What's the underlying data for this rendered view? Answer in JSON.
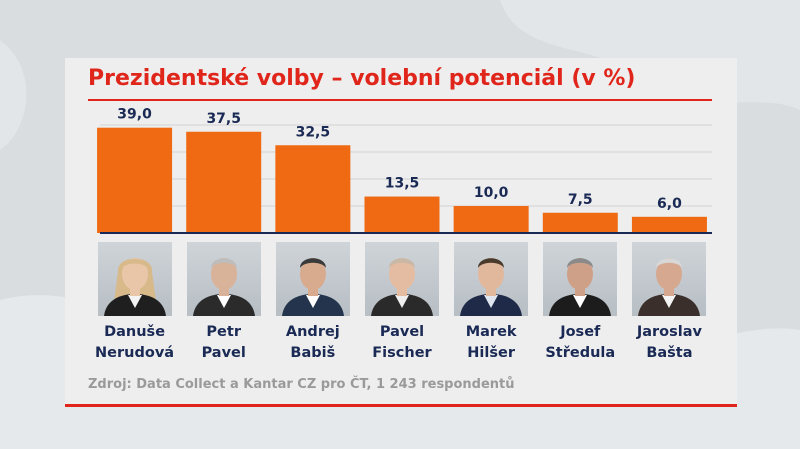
{
  "title": "Prezidentské volby – volební potenciál (v %)",
  "source": "Zdroj: Data Collect a Kantar CZ pro ČT, 1 243 respondentů",
  "colors": {
    "accent": "#e0261b",
    "bar": "#ef6a12",
    "text_dark": "#1a2a55",
    "source_text": "#9a9a9a",
    "panel": "#eeeeee"
  },
  "chart_data": {
    "type": "bar",
    "title": "Prezidentské volby – volební potenciál (v %)",
    "categories": [
      "Danuše Nerudová",
      "Petr Pavel",
      "Andrej Babiš",
      "Pavel Fischer",
      "Marek Hilšer",
      "Josef Středula",
      "Jaroslav Bašta"
    ],
    "values": [
      39.0,
      37.5,
      32.5,
      13.5,
      10.0,
      7.5,
      6.0
    ],
    "value_labels": [
      "39,0",
      "37,5",
      "32,5",
      "13,5",
      "10,0",
      "7,5",
      "6,0"
    ],
    "ylim": [
      0,
      40
    ],
    "grid": true,
    "xlabel": "",
    "ylabel": ""
  },
  "candidates": [
    {
      "first": "Danuše",
      "last": "Nerudová",
      "hair": "#d8b98a",
      "suit": "#1f1f1f",
      "shirt": "#f3f3f3",
      "skin": "#e9c6a8",
      "photo_icon": "woman-portrait"
    },
    {
      "first": "Petr",
      "last": "Pavel",
      "hair": "#bdbdbd",
      "suit": "#2b2b2b",
      "shirt": "#ffffff",
      "skin": "#d9b29a",
      "photo_icon": "man-portrait"
    },
    {
      "first": "Andrej",
      "last": "Babiš",
      "hair": "#3a3a3a",
      "suit": "#24344d",
      "shirt": "#ffffff",
      "skin": "#d8ab8f",
      "photo_icon": "man-portrait"
    },
    {
      "first": "Pavel",
      "last": "Fischer",
      "hair": "#c9b8a6",
      "suit": "#2a2a2a",
      "shirt": "#eeeeee",
      "skin": "#e4bca2",
      "photo_icon": "man-portrait"
    },
    {
      "first": "Marek",
      "last": "Hilšer",
      "hair": "#4a3a2c",
      "suit": "#1e2a48",
      "shirt": "#dfe6f0",
      "skin": "#e2b89d",
      "photo_icon": "man-portrait"
    },
    {
      "first": "Josef",
      "last": "Středula",
      "hair": "#8a8a8a",
      "suit": "#1c1c1c",
      "shirt": "#ffffff",
      "skin": "#cfa088",
      "photo_icon": "man-portrait"
    },
    {
      "first": "Jaroslav",
      "last": "Bašta",
      "hair": "#d8d8d8",
      "suit": "#3a2f2a",
      "shirt": "#f4f4f4",
      "skin": "#d6a890",
      "photo_icon": "man-portrait"
    }
  ]
}
